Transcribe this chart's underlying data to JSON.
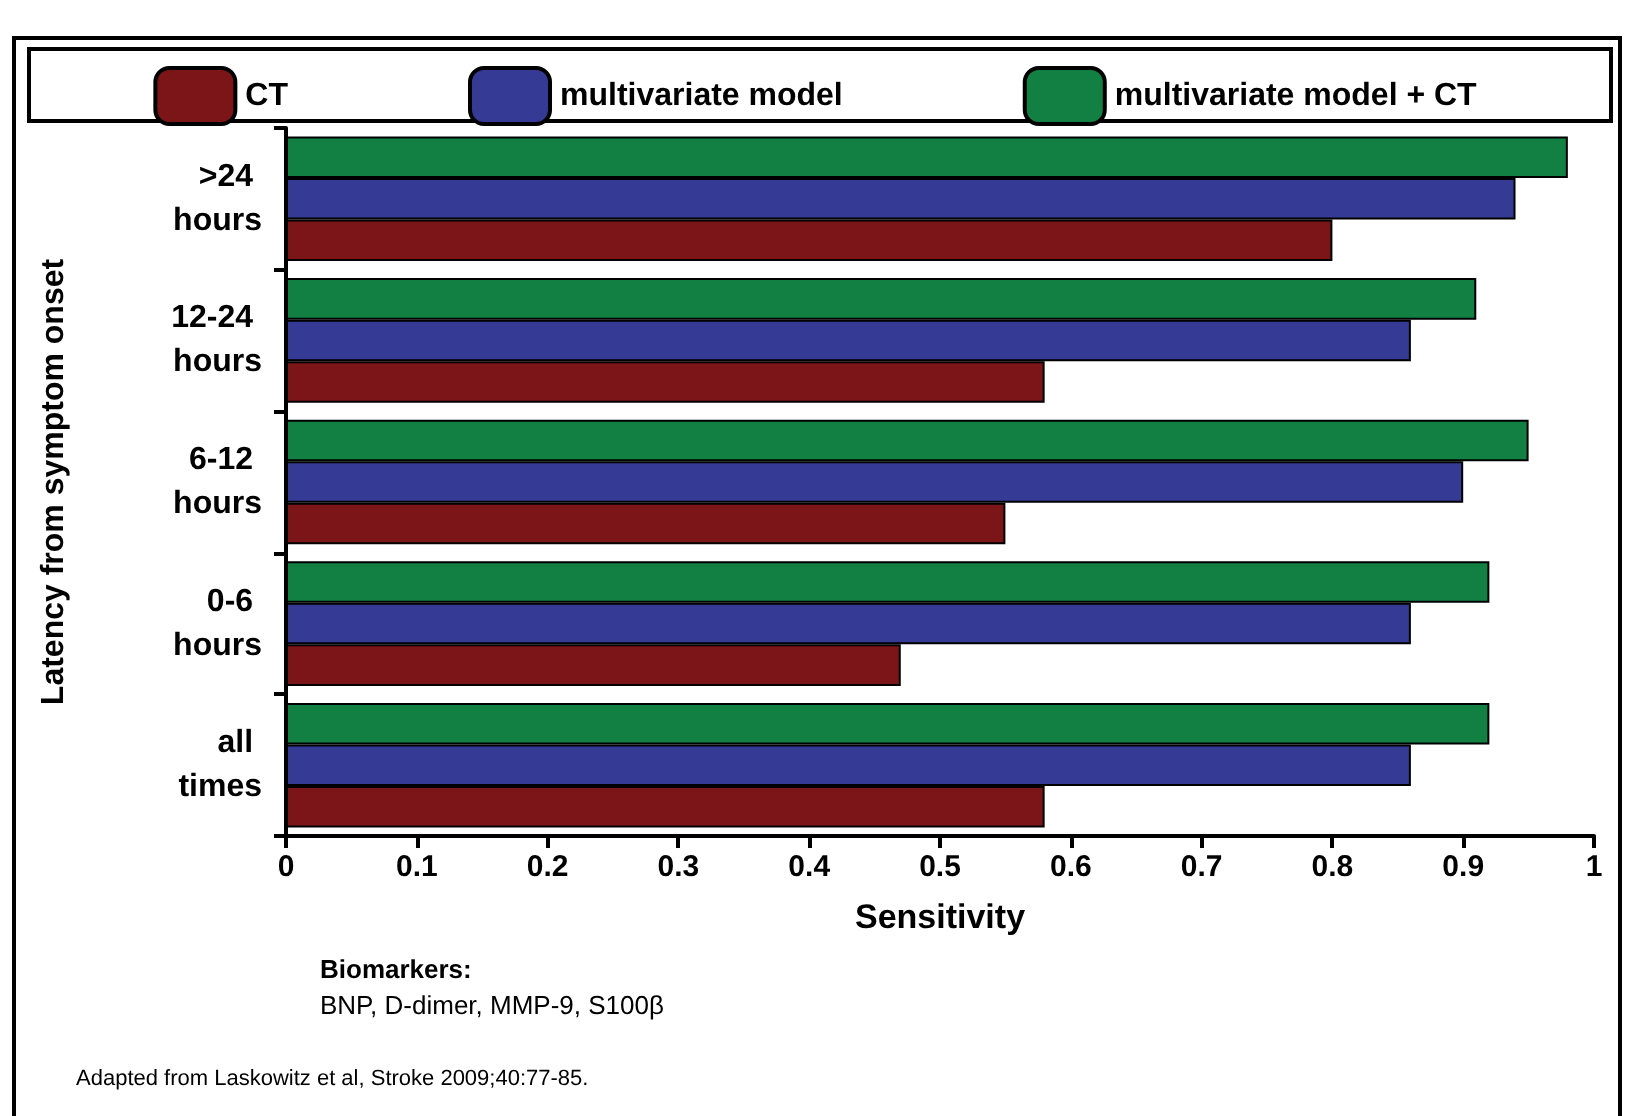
{
  "chart_data": {
    "type": "bar",
    "orientation": "horizontal",
    "categories": [
      ">24 hours",
      "12-24 hours",
      "6-12 hours",
      "0-6 hours",
      "all times"
    ],
    "series": [
      {
        "name": "CT",
        "color": "#7b1518",
        "values": [
          0.8,
          0.58,
          0.55,
          0.47,
          0.58
        ]
      },
      {
        "name": "multivariate model",
        "color": "#353a94",
        "values": [
          0.94,
          0.86,
          0.9,
          0.86,
          0.86
        ]
      },
      {
        "name": "multivariate model + CT",
        "color": "#138043",
        "values": [
          0.98,
          0.91,
          0.95,
          0.92,
          0.92
        ]
      }
    ],
    "xlim": [
      0,
      1
    ],
    "xticks": [
      0,
      0.1,
      0.2,
      0.3,
      0.4,
      0.5,
      0.6,
      0.7,
      0.8,
      0.9,
      1
    ],
    "xlabel": "Sensitivity",
    "ylabel": "Latency from symptom onset",
    "annotations": [
      "Biomarkers:",
      "BNP, D-dimer, MMP-9, S100β",
      "Adapted from Laskowitz et al, Stroke 2009;40:77-85."
    ],
    "legend": "top",
    "grid": false
  }
}
